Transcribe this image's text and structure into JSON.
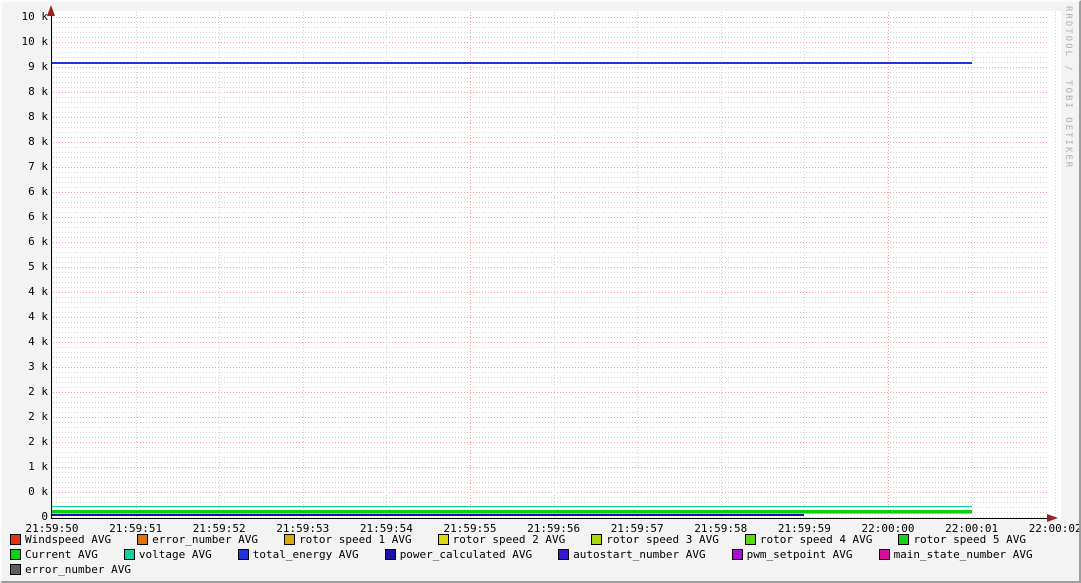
{
  "watermark": "RRDTOOL / TOBI OETIKER",
  "theme": {
    "background": "#f3f3f3",
    "canvas": "#ffffff",
    "axis": "#000000",
    "arrow": "#a02020",
    "grid_minor": "#d4d4d4",
    "grid_major": "#f49f9f",
    "watermark_gray": "#b0b0b0"
  },
  "chart_data": {
    "type": "line",
    "title": "",
    "xlabel": "",
    "ylabel": "",
    "grid": true,
    "legend_position": "bottom",
    "y_axis_labels": [
      "10 k",
      "10 k",
      "9 k",
      "8 k",
      "8 k",
      "8 k",
      "7 k",
      "6 k",
      "6 k",
      "6 k",
      "5 k",
      "4 k",
      "4 k",
      "4 k",
      "3 k",
      "2 k",
      "2 k",
      "2 k",
      "1 k",
      "0 k",
      "0"
    ],
    "x_tick_labels": [
      "21:59:50",
      "21:59:51",
      "21:59:52",
      "21:59:53",
      "21:59:54",
      "21:59:55",
      "21:59:56",
      "21:59:57",
      "21:59:58",
      "21:59:59",
      "22:00:00",
      "22:00:01",
      "22:00:02"
    ],
    "ylim": [
      0,
      10450
    ],
    "x_range": [
      "21:59:50",
      "22:00:02"
    ],
    "series": [
      {
        "name": "Windspeed AVG",
        "color": "#E0350F",
        "value": 0,
        "visible": false,
        "start_time": "21:59:50",
        "end_time": "22:00:01",
        "end_tick_index": 11
      },
      {
        "name": "error_number AVG",
        "color": "#E06F0E",
        "value": 0,
        "visible": false,
        "start_time": "21:59:50",
        "end_time": "22:00:01",
        "end_tick_index": 11
      },
      {
        "name": "rotor speed 1 AVG",
        "color": "#DCA80E",
        "value": 0,
        "visible": false,
        "start_time": "21:59:50",
        "end_time": "22:00:01",
        "end_tick_index": 11
      },
      {
        "name": "rotor speed 2 AVG",
        "color": "#DCD80D",
        "value": 0,
        "visible": false,
        "start_time": "21:59:50",
        "end_time": "22:00:01",
        "end_tick_index": 11
      },
      {
        "name": "rotor speed 3 AVG",
        "color": "#A8D80D",
        "value": 120,
        "visible": true,
        "stroke_px": 1.4,
        "start_time": "21:59:50",
        "end_time": "22:00:01",
        "end_tick_index": 11
      },
      {
        "name": "rotor speed 4 AVG",
        "color": "#5CD60D",
        "value": 0,
        "visible": false,
        "start_time": "21:59:50",
        "end_time": "22:00:01",
        "end_tick_index": 11
      },
      {
        "name": "rotor speed 5 AVG",
        "color": "#17D117",
        "value": 0,
        "visible": false,
        "start_time": "21:59:50",
        "end_time": "22:00:01",
        "end_tick_index": 11
      },
      {
        "name": "Current AVG",
        "color": "#0FD00F",
        "value": 150,
        "visible": true,
        "stroke_px": 3.2,
        "start_time": "21:59:50",
        "end_time": "22:00:01",
        "end_tick_index": 11
      },
      {
        "name": "voltage AVG",
        "color": "#0FD2A4",
        "value": 250,
        "visible": true,
        "stroke_px": 1.4,
        "start_time": "21:59:50",
        "end_time": "22:00:01",
        "end_tick_index": 11
      },
      {
        "name": "total_energy AVG",
        "color": "#2033DD",
        "value": 9200,
        "visible": true,
        "stroke_px": 2.5,
        "start_time": "21:59:50",
        "end_time": "22:00:01",
        "end_tick_index": 11
      },
      {
        "name": "power_calculated AVG",
        "color": "#1A10A8",
        "value": 80,
        "visible": true,
        "stroke_px": 2.0,
        "start_time": "21:59:50",
        "end_time": "21:59:59",
        "end_tick_index": 9
      },
      {
        "name": "autostart_number AVG",
        "color": "#3A16D1",
        "value": 0,
        "visible": false,
        "start_time": "21:59:50",
        "end_time": "22:00:01",
        "end_tick_index": 11
      },
      {
        "name": "pwm_setpoint AVG",
        "color": "#AE0DD6",
        "value": 0,
        "visible": false,
        "start_time": "21:59:50",
        "end_time": "22:00:01",
        "end_tick_index": 11
      },
      {
        "name": "main_state_number AVG",
        "color": "#D60D9E",
        "value": 0,
        "visible": false,
        "start_time": "21:59:50",
        "end_time": "22:00:01",
        "end_tick_index": 11
      },
      {
        "name": "error_number AVG",
        "color": "#5E5E5E",
        "value": 0,
        "visible": false,
        "start_time": "21:59:50",
        "end_time": "22:00:01",
        "end_tick_index": 11
      }
    ]
  },
  "legend": {
    "rows": [
      [
        {
          "label": "Windspeed AVG",
          "color": "#E0350F"
        },
        {
          "label": "error_number AVG",
          "color": "#E06F0E"
        },
        {
          "label": "rotor speed 1 AVG",
          "color": "#DCA80E"
        },
        {
          "label": "rotor speed 2 AVG",
          "color": "#DCD80D"
        },
        {
          "label": "rotor speed 3 AVG",
          "color": "#A8D80D"
        },
        {
          "label": "rotor speed 4 AVG",
          "color": "#5CD60D"
        },
        {
          "label": "rotor speed 5 AVG",
          "color": "#17D117"
        }
      ],
      [
        {
          "label": "Current AVG",
          "color": "#0FD00F"
        },
        {
          "label": "voltage AVG",
          "color": "#0FD2A4"
        },
        {
          "label": "total_energy AVG",
          "color": "#2033DD"
        },
        {
          "label": "power_calculated AVG",
          "color": "#1A10A8"
        },
        {
          "label": "autostart_number AVG",
          "color": "#3A16D1"
        },
        {
          "label": "pwm_setpoint AVG",
          "color": "#AE0DD6"
        },
        {
          "label": "main_state_number AVG",
          "color": "#D60D9E"
        }
      ],
      [
        {
          "label": "error_number AVG",
          "color": "#5E5E5E"
        }
      ]
    ]
  }
}
